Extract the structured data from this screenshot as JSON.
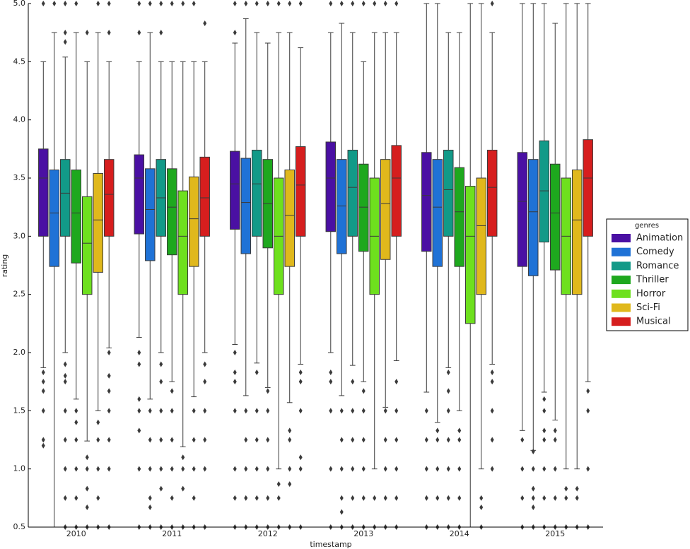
{
  "chart_data": {
    "type": "box",
    "x_label": "timestamp",
    "y_label": "rating",
    "legend_title": "genres",
    "legend_position": "right",
    "categories": [
      "2010",
      "2011",
      "2012",
      "2013",
      "2014",
      "2015"
    ],
    "ylim": [
      0.5,
      5.0
    ],
    "yticks": [
      {
        "value": 0.5,
        "label": "0.5"
      },
      {
        "value": 1.0,
        "label": "1.0"
      },
      {
        "value": 1.5,
        "label": "1.5"
      },
      {
        "value": 2.0,
        "label": "2.0"
      },
      {
        "value": 2.5,
        "label": "2.5"
      },
      {
        "value": 3.0,
        "label": "3.0"
      },
      {
        "value": 3.5,
        "label": "3.5"
      },
      {
        "value": 4.0,
        "label": "4.0"
      },
      {
        "value": 4.5,
        "label": "4.5"
      },
      {
        "value": 5.0,
        "label": "5.0"
      }
    ],
    "series": [
      {
        "name": "Animation",
        "color": "#4a10a3",
        "boxes": [
          {
            "whislo": 1.87,
            "q1": 3.0,
            "med": 3.5,
            "q3": 3.75,
            "whishi": 4.5,
            "fliers": [
              5.0,
              1.83,
              1.75,
              1.67,
              1.5,
              1.25,
              1.2
            ]
          },
          {
            "whislo": 2.13,
            "q1": 3.02,
            "med": 3.5,
            "q3": 3.7,
            "whishi": 4.5,
            "fliers": [
              5.0,
              4.75,
              2.0,
              1.9,
              1.6,
              1.5,
              1.33,
              1.0,
              0.5
            ]
          },
          {
            "whislo": 2.07,
            "q1": 3.06,
            "med": 3.45,
            "q3": 3.73,
            "whishi": 4.66,
            "fliers": [
              5.0,
              4.75,
              2.0,
              1.83,
              1.75,
              1.5,
              1.0,
              0.75,
              0.5
            ]
          },
          {
            "whislo": 2.0,
            "q1": 3.04,
            "med": 3.5,
            "q3": 3.81,
            "whishi": 4.75,
            "fliers": [
              5.0,
              1.83,
              1.75,
              1.5,
              1.0,
              0.5
            ]
          },
          {
            "whislo": 1.66,
            "q1": 2.87,
            "med": 3.35,
            "q3": 3.72,
            "whishi": 5.0,
            "fliers": [
              1.5,
              1.25,
              1.0,
              0.75,
              0.5
            ]
          },
          {
            "whislo": 1.33,
            "q1": 2.74,
            "med": 3.3,
            "q3": 3.72,
            "whishi": 5.0,
            "fliers": [
              1.25,
              1.0,
              0.75,
              0.5
            ]
          }
        ]
      },
      {
        "name": "Comedy",
        "color": "#1f72d6",
        "boxes": [
          {
            "whislo": 0.5,
            "q1": 2.74,
            "med": 3.2,
            "q3": 3.57,
            "whishi": 4.75,
            "fliers": [
              5.0
            ]
          },
          {
            "whislo": 1.6,
            "q1": 2.79,
            "med": 3.23,
            "q3": 3.58,
            "whishi": 4.75,
            "fliers": [
              5.0,
              1.5,
              1.25,
              1.0,
              0.75,
              0.67,
              0.5
            ]
          },
          {
            "whislo": 1.63,
            "q1": 2.85,
            "med": 3.29,
            "q3": 3.67,
            "whishi": 4.87,
            "fliers": [
              5.0,
              1.5,
              1.25,
              1.0,
              0.75,
              0.5
            ]
          },
          {
            "whislo": 1.63,
            "q1": 2.85,
            "med": 3.26,
            "q3": 3.66,
            "whishi": 4.83,
            "fliers": [
              5.0,
              1.5,
              1.25,
              1.0,
              0.75,
              0.63,
              0.5
            ]
          },
          {
            "whislo": 1.4,
            "q1": 2.74,
            "med": 3.25,
            "q3": 3.66,
            "whishi": 5.0,
            "fliers": [
              1.33,
              1.25,
              1.0,
              0.75,
              0.5
            ]
          },
          {
            "whislo": 1.16,
            "q1": 2.66,
            "med": 3.21,
            "q3": 3.66,
            "whishi": 5.0,
            "fliers": [
              1.15,
              1.0,
              0.83,
              0.75,
              0.67,
              0.5
            ]
          }
        ]
      },
      {
        "name": "Romance",
        "color": "#129a88",
        "boxes": [
          {
            "whislo": 2.0,
            "q1": 3.0,
            "med": 3.37,
            "q3": 3.66,
            "whishi": 4.54,
            "fliers": [
              5.0,
              4.75,
              4.67,
              1.9,
              1.8,
              1.75,
              1.5,
              1.25,
              1.0,
              0.75,
              0.5
            ]
          },
          {
            "whislo": 2.0,
            "q1": 3.0,
            "med": 3.33,
            "q3": 3.66,
            "whishi": 4.5,
            "fliers": [
              5.0,
              4.75,
              1.9,
              1.75,
              1.5,
              1.25,
              1.0,
              0.83,
              0.5
            ]
          },
          {
            "whislo": 1.91,
            "q1": 3.0,
            "med": 3.45,
            "q3": 3.74,
            "whishi": 4.75,
            "fliers": [
              5.0,
              1.83,
              1.5,
              1.25,
              1.0,
              0.75,
              0.5
            ]
          },
          {
            "whislo": 1.89,
            "q1": 3.0,
            "med": 3.42,
            "q3": 3.74,
            "whishi": 4.75,
            "fliers": [
              5.0,
              1.75,
              1.5,
              1.25,
              1.0,
              0.75,
              0.5
            ]
          },
          {
            "whislo": 1.87,
            "q1": 3.0,
            "med": 3.4,
            "q3": 3.74,
            "whishi": 4.75,
            "fliers": [
              1.83,
              1.67,
              1.5,
              1.25,
              1.0,
              0.75,
              0.5
            ]
          },
          {
            "whislo": 1.66,
            "q1": 2.95,
            "med": 3.39,
            "q3": 3.82,
            "whishi": 5.0,
            "fliers": [
              1.6,
              1.5,
              1.33,
              1.25,
              1.0,
              0.75,
              0.5
            ]
          }
        ]
      },
      {
        "name": "Thriller",
        "color": "#1ea81e",
        "boxes": [
          {
            "whislo": 1.6,
            "q1": 2.77,
            "med": 3.2,
            "q3": 3.57,
            "whishi": 4.75,
            "fliers": [
              5.0,
              1.5,
              1.4,
              1.25,
              1.0,
              0.75,
              0.5
            ]
          },
          {
            "whislo": 1.75,
            "q1": 2.84,
            "med": 3.25,
            "q3": 3.58,
            "whishi": 4.5,
            "fliers": [
              5.0,
              1.67,
              1.5,
              1.25,
              1.0,
              0.75,
              0.5
            ]
          },
          {
            "whislo": 1.7,
            "q1": 2.9,
            "med": 3.28,
            "q3": 3.66,
            "whishi": 4.66,
            "fliers": [
              5.0,
              1.67,
              1.5,
              1.25,
              1.0,
              0.75,
              0.5
            ]
          },
          {
            "whislo": 1.75,
            "q1": 2.87,
            "med": 3.25,
            "q3": 3.62,
            "whishi": 4.5,
            "fliers": [
              5.0,
              1.67,
              1.5,
              1.25,
              1.0,
              0.75,
              0.5
            ]
          },
          {
            "whislo": 1.5,
            "q1": 2.74,
            "med": 3.21,
            "q3": 3.59,
            "whishi": 4.75,
            "fliers": [
              1.33,
              1.25,
              1.0,
              0.75,
              0.5
            ]
          },
          {
            "whislo": 1.42,
            "q1": 2.71,
            "med": 3.2,
            "q3": 3.62,
            "whishi": 4.83,
            "fliers": [
              1.33,
              1.25,
              1.0,
              0.75,
              0.5
            ]
          }
        ]
      },
      {
        "name": "Horror",
        "color": "#6ee01e",
        "boxes": [
          {
            "whislo": 1.24,
            "q1": 2.5,
            "med": 2.94,
            "q3": 3.34,
            "whishi": 4.5,
            "fliers": [
              4.75,
              1.1,
              1.0,
              0.83,
              0.67,
              0.5
            ]
          },
          {
            "whislo": 1.19,
            "q1": 2.5,
            "med": 3.0,
            "q3": 3.39,
            "whishi": 4.5,
            "fliers": [
              5.0,
              1.1,
              1.0,
              0.83,
              0.5
            ]
          },
          {
            "whislo": 1.0,
            "q1": 2.5,
            "med": 3.0,
            "q3": 3.5,
            "whishi": 4.75,
            "fliers": [
              5.0,
              0.87,
              0.75,
              0.5
            ]
          },
          {
            "whislo": 1.0,
            "q1": 2.5,
            "med": 3.0,
            "q3": 3.5,
            "whishi": 4.75,
            "fliers": [
              5.0,
              0.75,
              0.5
            ]
          },
          {
            "whislo": 0.5,
            "q1": 2.25,
            "med": 3.0,
            "q3": 3.43,
            "whishi": 5.0,
            "fliers": []
          },
          {
            "whislo": 1.0,
            "q1": 2.5,
            "med": 3.0,
            "q3": 3.5,
            "whishi": 5.0,
            "fliers": [
              0.83,
              0.75,
              0.5
            ]
          }
        ]
      },
      {
        "name": "Sci-Fi",
        "color": "#e0b81c",
        "boxes": [
          {
            "whislo": 1.5,
            "q1": 2.69,
            "med": 3.14,
            "q3": 3.54,
            "whishi": 4.75,
            "fliers": [
              5.0,
              1.4,
              1.25,
              1.0,
              0.75,
              0.5
            ]
          },
          {
            "whislo": 1.62,
            "q1": 2.74,
            "med": 3.15,
            "q3": 3.51,
            "whishi": 4.5,
            "fliers": [
              5.0,
              1.5,
              1.25,
              1.0,
              0.75,
              0.5
            ]
          },
          {
            "whislo": 1.57,
            "q1": 2.74,
            "med": 3.18,
            "q3": 3.57,
            "whishi": 4.75,
            "fliers": [
              5.0,
              1.33,
              1.25,
              1.0,
              0.87,
              0.5
            ]
          },
          {
            "whislo": 1.53,
            "q1": 2.8,
            "med": 3.28,
            "q3": 3.66,
            "whishi": 4.75,
            "fliers": [
              5.0,
              1.5,
              1.25,
              1.0,
              0.75,
              0.5
            ]
          },
          {
            "whislo": 1.0,
            "q1": 2.5,
            "med": 3.09,
            "q3": 3.5,
            "whishi": 5.0,
            "fliers": [
              0.75,
              0.67,
              0.5
            ]
          },
          {
            "whislo": 1.0,
            "q1": 2.5,
            "med": 3.14,
            "q3": 3.57,
            "whishi": 5.0,
            "fliers": [
              0.83,
              0.75,
              0.5
            ]
          }
        ]
      },
      {
        "name": "Musical",
        "color": "#d61e1e",
        "boxes": [
          {
            "whislo": 2.04,
            "q1": 3.0,
            "med": 3.36,
            "q3": 3.66,
            "whishi": 4.5,
            "fliers": [
              5.0,
              4.75,
              2.0,
              1.8,
              1.67,
              1.5,
              1.25,
              1.0,
              0.5
            ]
          },
          {
            "whislo": 2.0,
            "q1": 3.0,
            "med": 3.33,
            "q3": 3.68,
            "whishi": 4.5,
            "fliers": [
              4.83,
              1.9,
              1.75,
              1.5,
              1.25,
              1.0,
              0.5
            ]
          },
          {
            "whislo": 1.9,
            "q1": 3.0,
            "med": 3.44,
            "q3": 3.77,
            "whishi": 4.62,
            "fliers": [
              5.0,
              1.83,
              1.75,
              1.5,
              1.1,
              1.0,
              0.5
            ]
          },
          {
            "whislo": 1.93,
            "q1": 3.0,
            "med": 3.5,
            "q3": 3.78,
            "whishi": 4.75,
            "fliers": [
              5.0,
              1.75,
              1.5,
              1.25,
              1.0,
              0.75,
              0.5
            ]
          },
          {
            "whislo": 1.9,
            "q1": 3.0,
            "med": 3.42,
            "q3": 3.74,
            "whishi": 4.75,
            "fliers": [
              5.0,
              1.83,
              1.75,
              1.5,
              1.25,
              1.0
            ]
          },
          {
            "whislo": 1.75,
            "q1": 3.0,
            "med": 3.5,
            "q3": 3.83,
            "whishi": 5.0,
            "fliers": [
              1.67,
              1.5,
              1.0,
              0.5
            ]
          }
        ]
      }
    ]
  }
}
